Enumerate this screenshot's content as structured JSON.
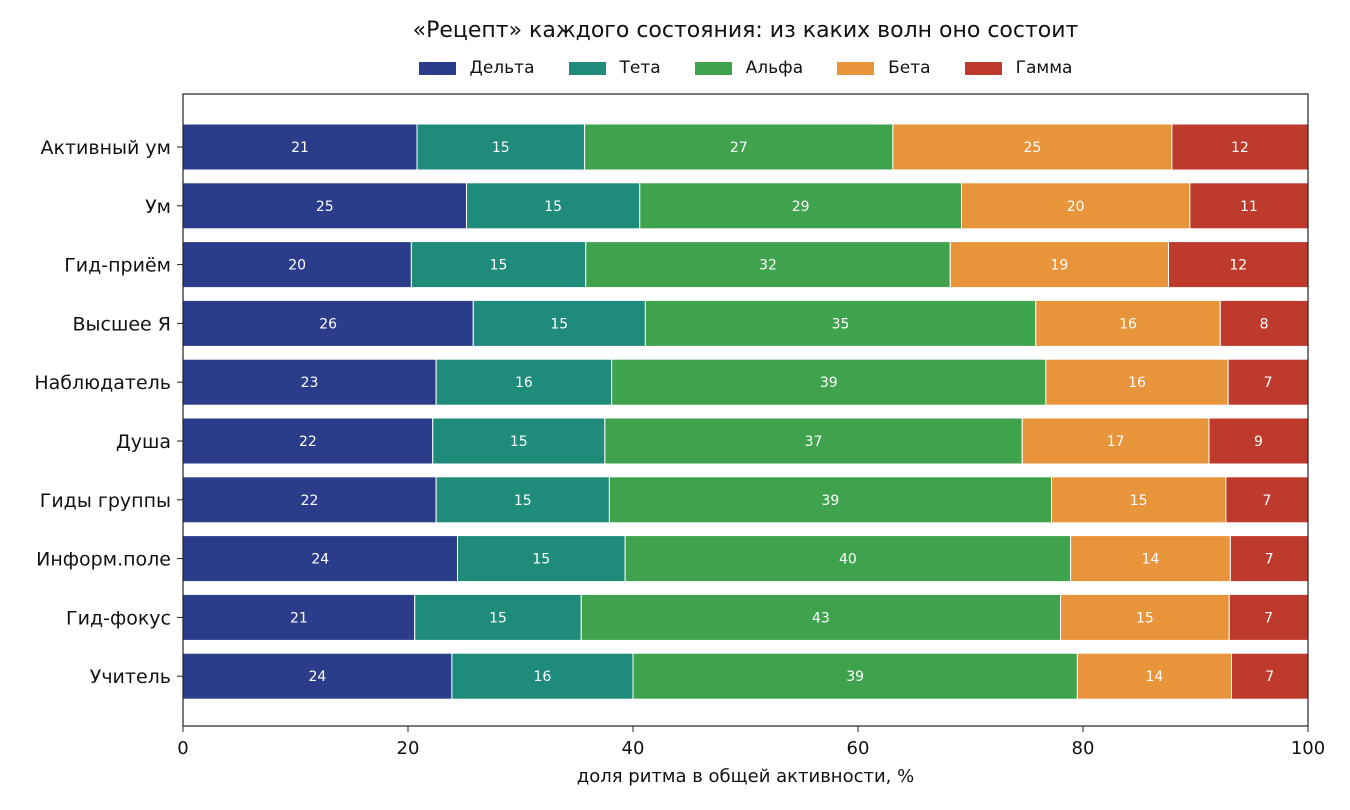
{
  "chart_data": {
    "type": "bar",
    "orientation": "horizontal",
    "stacked": true,
    "title": "«Рецепт» каждого состояния: из каких волн оно состоит",
    "xlabel": "доля ритма в общей активности, %",
    "ylabel": "",
    "xlim": [
      0,
      100
    ],
    "xticks": [
      "0",
      "20",
      "40",
      "60",
      "80",
      "100"
    ],
    "xtick_values": [
      0,
      20,
      40,
      60,
      80,
      100
    ],
    "grid": false,
    "legend_position": "top-center",
    "categories": [
      "Активный ум",
      "Ум",
      "Гид-приём",
      "Высшее Я",
      "Наблюдатель",
      "Душа",
      "Гиды группы",
      "Информ.поле",
      "Гид-фокус",
      "Учитель"
    ],
    "series": [
      {
        "name": "Дельта",
        "color": "#2b3d8a",
        "values": [
          20.8,
          25.2,
          20.3,
          25.8,
          22.5,
          22.2,
          22.5,
          24.4,
          20.6,
          23.9
        ],
        "labels": [
          "21",
          "25",
          "20",
          "26",
          "23",
          "22",
          "22",
          "24",
          "21",
          "24"
        ]
      },
      {
        "name": "Тета",
        "color": "#1f8b7b",
        "values": [
          14.9,
          15.4,
          15.5,
          15.3,
          15.6,
          15.3,
          15.4,
          14.9,
          14.8,
          16.1
        ],
        "labels": [
          "15",
          "15",
          "15",
          "15",
          "16",
          "15",
          "15",
          "15",
          "15",
          "16"
        ]
      },
      {
        "name": "Альфа",
        "color": "#3fa34d",
        "values": [
          27.4,
          28.6,
          32.4,
          34.7,
          38.6,
          37.1,
          39.3,
          39.6,
          42.6,
          39.5
        ],
        "labels": [
          "27",
          "29",
          "32",
          "35",
          "39",
          "37",
          "39",
          "40",
          "43",
          "39"
        ]
      },
      {
        "name": "Бета",
        "color": "#e8943a",
        "values": [
          24.8,
          20.3,
          19.4,
          16.4,
          16.2,
          16.6,
          15.5,
          14.2,
          15.0,
          13.7
        ],
        "labels": [
          "25",
          "20",
          "19",
          "16",
          "16",
          "17",
          "15",
          "14",
          "15",
          "14"
        ]
      },
      {
        "name": "Гамма",
        "color": "#bd3a2c",
        "values": [
          12.1,
          10.5,
          12.4,
          7.8,
          7.1,
          8.8,
          7.3,
          6.9,
          7.0,
          6.8
        ],
        "labels": [
          "12",
          "11",
          "12",
          "8",
          "7",
          "9",
          "7",
          "7",
          "7",
          "7"
        ]
      }
    ]
  }
}
